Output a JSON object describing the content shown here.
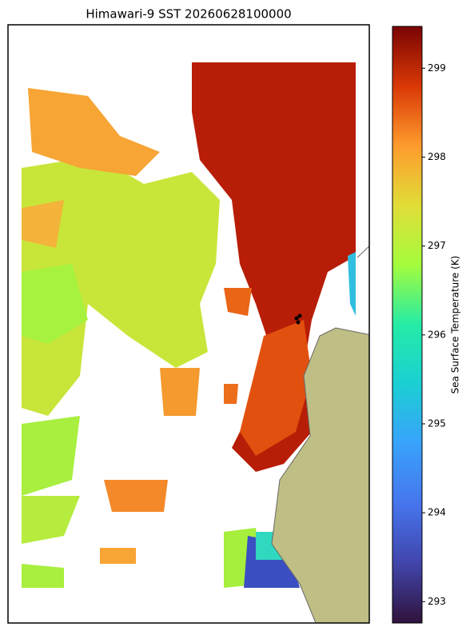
{
  "map": {
    "title": "Himawari-9 SST 20260628100000"
  },
  "colorbar": {
    "label": "Sea Surface Temperature (K)",
    "clim": [
      292.76,
      299.47
    ],
    "ticks": [
      293,
      294,
      295,
      296,
      297,
      298,
      299
    ]
  }
}
